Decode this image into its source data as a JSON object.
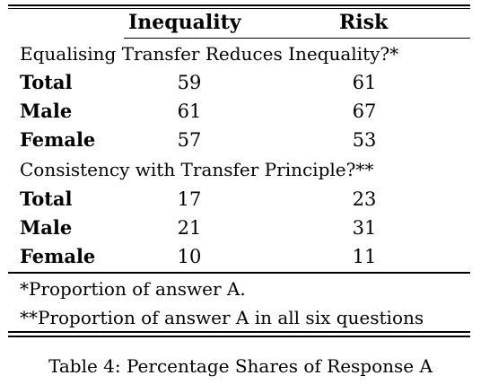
{
  "table": {
    "headers": [
      "Inequality",
      "Risk"
    ],
    "sections": [
      {
        "title": "Equalising Transfer Reduces Inequality?*",
        "rows": [
          {
            "label": "Total",
            "inequality": "59",
            "risk": "61"
          },
          {
            "label": "Male",
            "inequality": "61",
            "risk": "67"
          },
          {
            "label": "Female",
            "inequality": "57",
            "risk": "53"
          }
        ]
      },
      {
        "title": "Consistency with Transfer Principle?**",
        "rows": [
          {
            "label": "Total",
            "inequality": "17",
            "risk": "23"
          },
          {
            "label": "Male",
            "inequality": "21",
            "risk": "31"
          },
          {
            "label": "Female",
            "inequality": "10",
            "risk": "11"
          }
        ]
      }
    ],
    "notes": [
      "*Proportion of answer A.",
      "**Proportion of answer A in all six questions"
    ]
  },
  "caption": "Table 4: Percentage Shares of Response A"
}
